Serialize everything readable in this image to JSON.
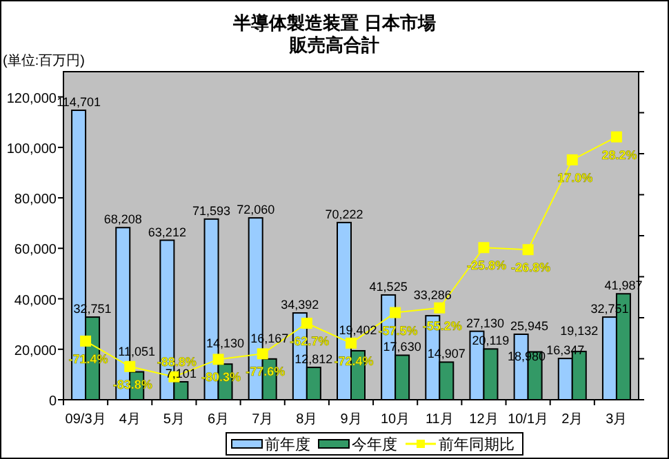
{
  "chart_data": {
    "type": "bar",
    "title": "半導体製造装置 日本市場",
    "subtitle": "販売高合計",
    "ylabel": "(単位:百万円)",
    "categories": [
      "09/3月",
      "4月",
      "5月",
      "6月",
      "7月",
      "8月",
      "9月",
      "10月",
      "11月",
      "12月",
      "10/1月",
      "2月",
      "3月"
    ],
    "series": [
      {
        "name": "前年度",
        "color": "#99ccff",
        "values": [
          114701,
          68208,
          63212,
          71593,
          72060,
          34392,
          70222,
          41525,
          33286,
          27130,
          25945,
          16347,
          32751
        ],
        "value_labels": [
          "114,701",
          "68,208",
          "63,212",
          "71,593",
          "72,060",
          "34,392",
          "70,222",
          "41,525",
          "33,286",
          "27,130",
          "25,945",
          "16,347",
          "32,751"
        ]
      },
      {
        "name": "今年度",
        "color": "#339966",
        "values": [
          32751,
          11051,
          7101,
          14130,
          16167,
          12812,
          19402,
          17630,
          14907,
          20119,
          18980,
          19132,
          41987
        ],
        "value_labels": [
          "32,751",
          "11,051",
          "7,101",
          "14,130",
          "16,167",
          "12,812",
          "19,402",
          "17,630",
          "14,907",
          "20,119",
          "18,980",
          "19,132",
          "41,987"
        ]
      },
      {
        "name": "前年同期比",
        "type": "line",
        "axis": "y2",
        "marker": "square",
        "color": "#ffff00",
        "values": [
          -71.4,
          -83.8,
          -88.8,
          -80.3,
          -77.6,
          -62.7,
          -72.4,
          -57.5,
          -55.2,
          -25.8,
          -26.8,
          17.0,
          28.2
        ],
        "value_labels": [
          "-71.4%",
          "-83.8%",
          "-88.8%",
          "-80.3%",
          "-77.6%",
          "-62.7%",
          "-72.4%",
          "-57.5%",
          "-55.2%",
          "-25.8%",
          "-26.8%",
          "17.0%",
          "28.2%"
        ]
      }
    ],
    "ylim": [
      0,
      130000
    ],
    "yticks": [
      {
        "value": 0,
        "label": "0"
      },
      {
        "value": 20000,
        "label": "20,000"
      },
      {
        "value": 40000,
        "label": "40,000"
      },
      {
        "value": 60000,
        "label": "60,000"
      },
      {
        "value": 80000,
        "label": "80,000"
      },
      {
        "value": 100000,
        "label": "100,000"
      },
      {
        "value": 120000,
        "label": "120,000"
      }
    ],
    "y2lim": [
      -100,
      60
    ],
    "y2ticks": [
      {
        "value": -100,
        "label": null
      },
      {
        "value": -80,
        "label": null
      },
      {
        "value": -60,
        "label": null
      },
      {
        "value": -40,
        "label": null
      },
      {
        "value": -20,
        "label": null
      },
      {
        "value": 0,
        "label": null
      },
      {
        "value": 20,
        "label": null
      },
      {
        "value": 40,
        "label": null
      },
      {
        "value": 60,
        "label": null
      }
    ],
    "legend": "bottom"
  }
}
